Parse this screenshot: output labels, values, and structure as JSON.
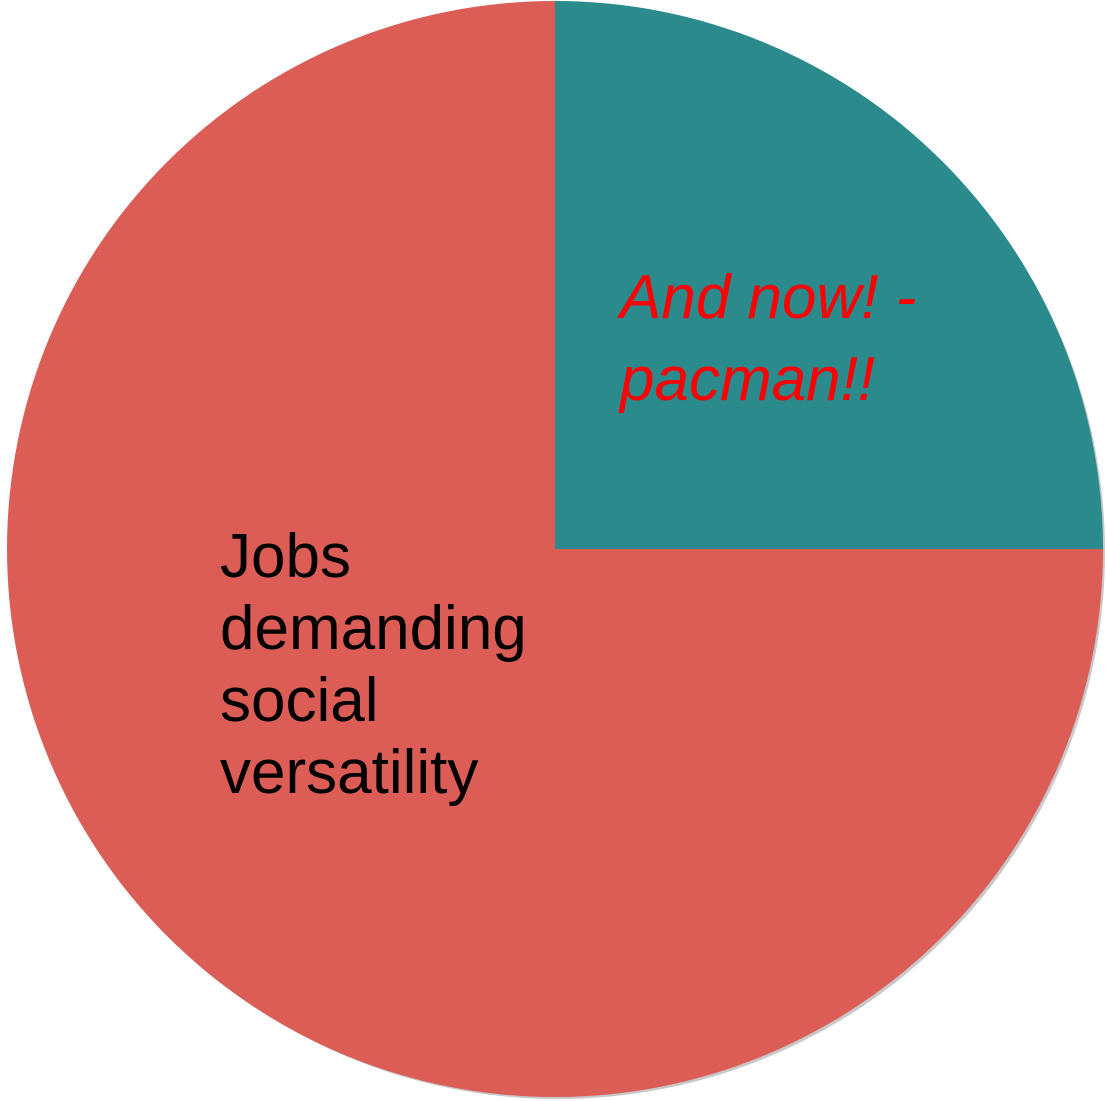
{
  "chart_data": {
    "type": "pie",
    "slices": [
      {
        "label_lines": [
          "And now!  -",
          "pacman!!"
        ],
        "value": 25,
        "color": "#2a8a8c",
        "label_color": "#ff0000",
        "label_style": "italic"
      },
      {
        "label_lines": [
          "Jobs",
          "demanding",
          "social",
          "versatility"
        ],
        "value": 75,
        "color": "#db5d56",
        "label_color": "#000000",
        "label_style": "normal"
      }
    ],
    "start_angle_degrees": 0,
    "direction": "clockwise-from-top",
    "legend": "none"
  }
}
